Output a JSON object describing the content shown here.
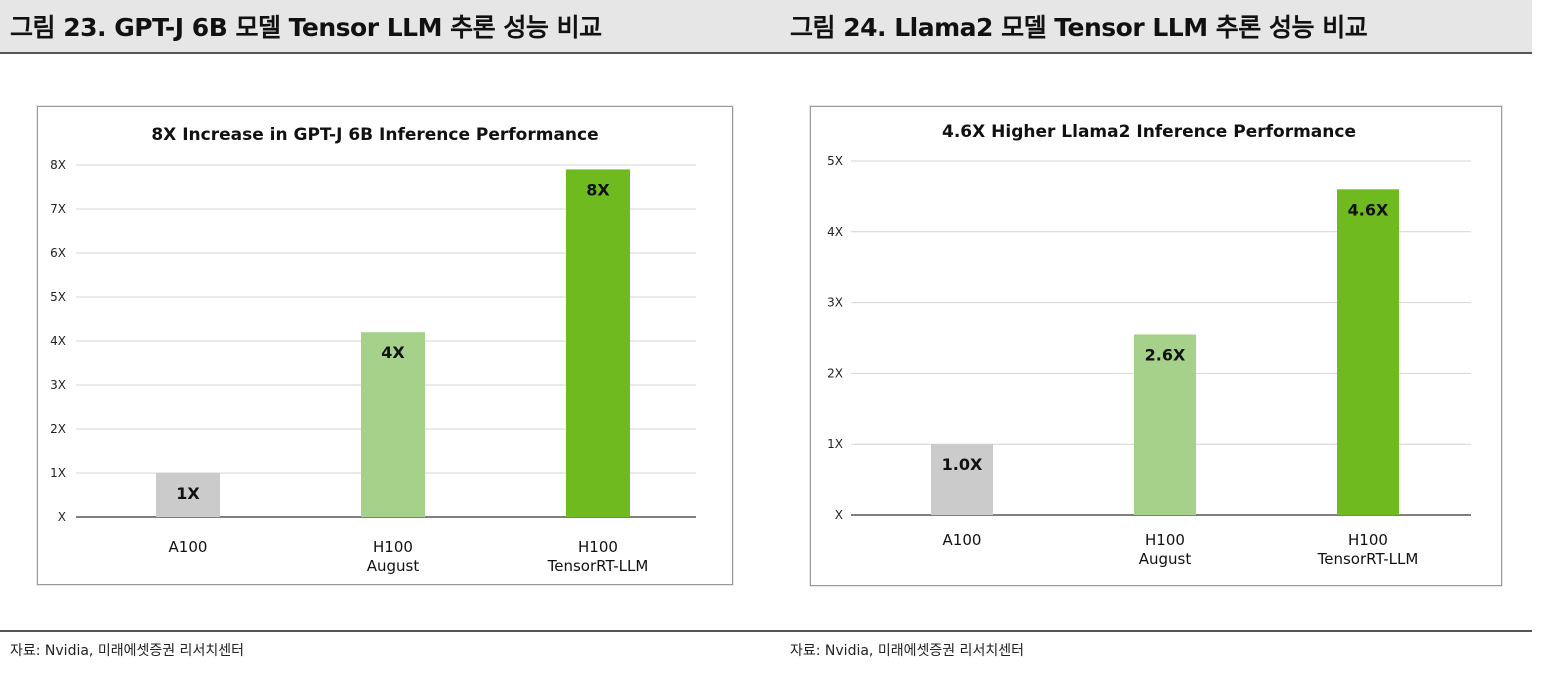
{
  "figures": [
    {
      "label": "그림 23. GPT-J 6B 모델 Tensor LLM 추론 성능 비교",
      "source": "자료: Nvidia, 미래에셋증권 리서치센터"
    },
    {
      "label": "그림 24. Llama2 모델 Tensor LLM 추론 성능 비교",
      "source": "자료: Nvidia, 미래에셋증권 리서치센터"
    }
  ],
  "chart_data": [
    {
      "type": "bar",
      "title": "8X Increase in GPT-J 6B Inference Performance",
      "categories": [
        [
          "A100"
        ],
        [
          "H100",
          "August"
        ],
        [
          "H100",
          "TensorRT-LLM"
        ]
      ],
      "values": [
        1,
        4.2,
        7.9
      ],
      "data_labels": [
        "1X",
        "4X",
        "8X"
      ],
      "colors": [
        "#cbcbcb",
        "#a6d18b",
        "#6fbb1f"
      ],
      "y_ticks": [
        0,
        1,
        2,
        3,
        4,
        5,
        6,
        7,
        8
      ],
      "y_tick_labels": [
        "X",
        "1X",
        "2X",
        "3X",
        "4X",
        "5X",
        "6X",
        "7X",
        "8X"
      ],
      "ylim": [
        0,
        8
      ],
      "grid": true,
      "legend": "none"
    },
    {
      "type": "bar",
      "title": "4.6X Higher Llama2 Inference Performance",
      "categories": [
        [
          "A100"
        ],
        [
          "H100",
          "August"
        ],
        [
          "H100",
          "TensorRT-LLM"
        ]
      ],
      "values": [
        1.0,
        2.55,
        4.6
      ],
      "data_labels": [
        "1.0X",
        "2.6X",
        "4.6X"
      ],
      "colors": [
        "#cbcbcb",
        "#a6d18b",
        "#6fbb1f"
      ],
      "y_ticks": [
        0,
        1,
        2,
        3,
        4,
        5
      ],
      "y_tick_labels": [
        "X",
        "1X",
        "2X",
        "3X",
        "4X",
        "5X"
      ],
      "ylim": [
        0,
        5
      ],
      "grid": true,
      "legend": "none"
    }
  ]
}
